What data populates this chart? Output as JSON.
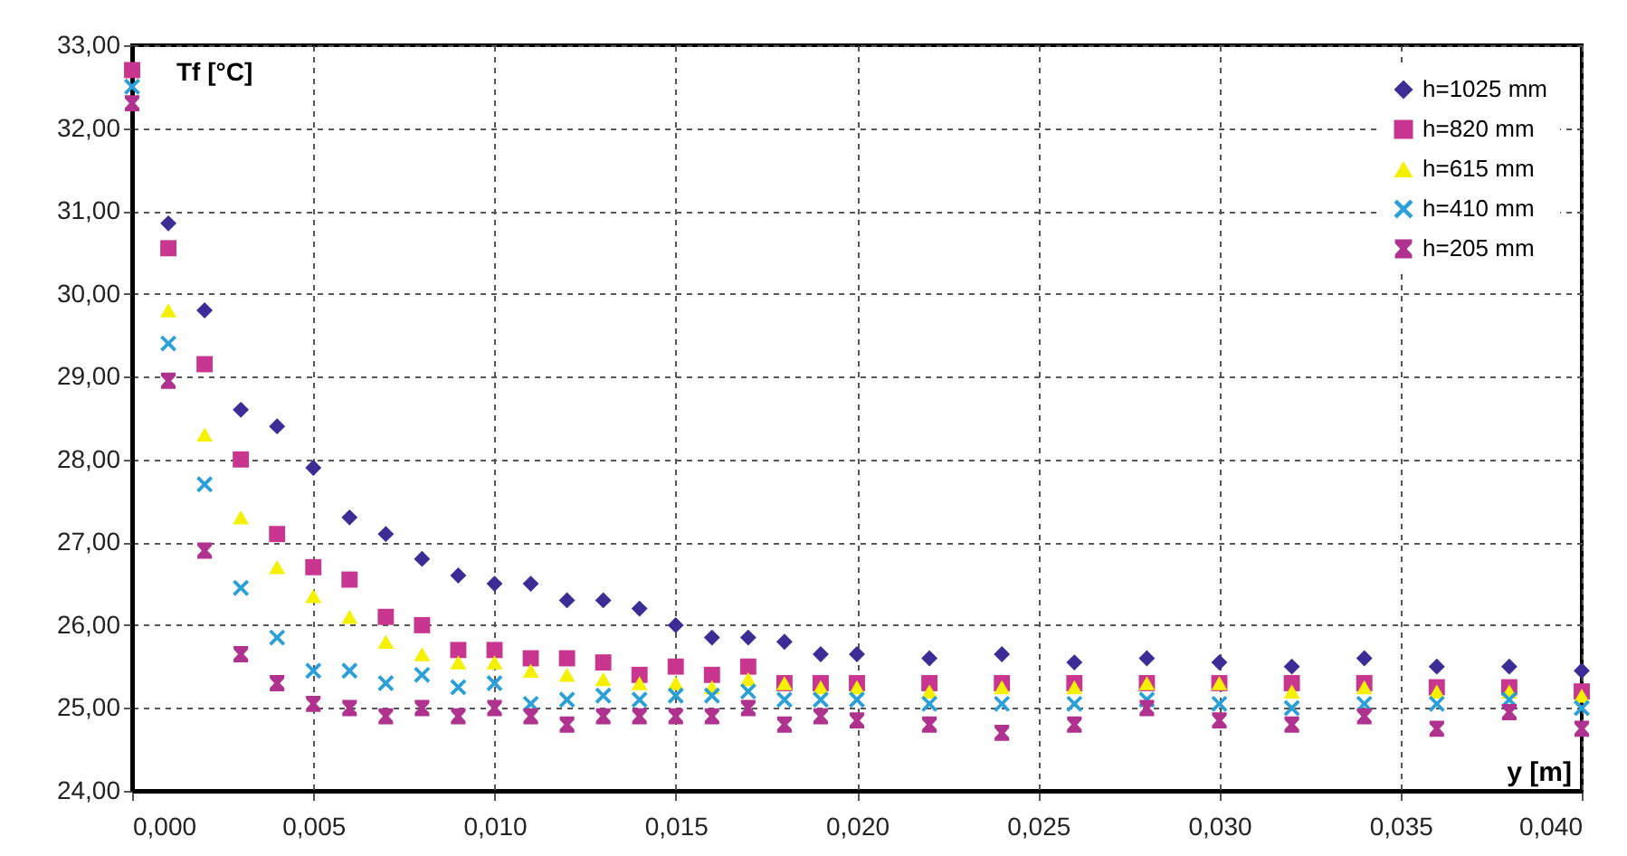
{
  "chart_data": {
    "type": "scatter",
    "ylabel": "Tf [°C]",
    "xlabel": "y [m]",
    "x": [
      0,
      0.001,
      0.002,
      0.003,
      0.004,
      0.005,
      0.006,
      0.007,
      0.008,
      0.009,
      0.01,
      0.011,
      0.012,
      0.013,
      0.014,
      0.015,
      0.016,
      0.017,
      0.018,
      0.019,
      0.02,
      0.022,
      0.024,
      0.026,
      0.028,
      0.03,
      0.032,
      0.034,
      0.036,
      0.038,
      0.04
    ],
    "series": [
      {
        "name": "h=1025 mm",
        "color": "#3b2d96",
        "marker": "diamond",
        "values": [
          null,
          30.85,
          29.8,
          28.6,
          28.4,
          27.9,
          27.3,
          27.1,
          26.8,
          26.6,
          26.5,
          26.5,
          26.3,
          26.3,
          26.2,
          26.0,
          25.85,
          25.85,
          25.8,
          25.65,
          25.65,
          25.6,
          25.65,
          25.55,
          25.6,
          25.55,
          25.5,
          25.6,
          25.5,
          25.5,
          25.45
        ]
      },
      {
        "name": "h=820 mm",
        "color": "#c8368f",
        "marker": "square",
        "values": [
          32.7,
          30.55,
          29.15,
          28.0,
          27.1,
          26.7,
          26.55,
          26.1,
          26.0,
          25.7,
          25.7,
          25.6,
          25.6,
          25.55,
          25.4,
          25.5,
          25.4,
          25.5,
          25.3,
          25.3,
          25.3,
          25.3,
          25.3,
          25.3,
          25.3,
          25.3,
          25.3,
          25.3,
          25.25,
          25.25,
          25.2
        ]
      },
      {
        "name": "h=615 mm",
        "color": "#f5f000",
        "marker": "triangle",
        "values": [
          null,
          29.8,
          28.3,
          27.3,
          26.7,
          26.35,
          26.1,
          25.8,
          25.65,
          25.55,
          25.55,
          25.45,
          25.4,
          25.35,
          25.3,
          25.3,
          25.25,
          25.35,
          25.3,
          25.25,
          25.25,
          25.2,
          25.25,
          25.25,
          25.3,
          25.3,
          25.2,
          25.25,
          25.2,
          25.2,
          25.15
        ]
      },
      {
        "name": "h=410 mm",
        "color": "#2ba0d8",
        "marker": "cross",
        "values": [
          32.5,
          29.4,
          27.7,
          26.45,
          25.85,
          25.45,
          25.45,
          25.3,
          25.4,
          25.25,
          25.3,
          25.05,
          25.1,
          25.15,
          25.1,
          25.15,
          25.15,
          25.2,
          25.1,
          25.1,
          25.1,
          25.05,
          25.05,
          25.05,
          25.1,
          25.05,
          25.0,
          25.05,
          25.05,
          25.1,
          25.0
        ]
      },
      {
        "name": "h=205 mm",
        "color": "#b0328f",
        "marker": "star",
        "values": [
          32.3,
          28.95,
          26.9,
          25.65,
          25.3,
          25.05,
          25.0,
          24.9,
          25.0,
          24.9,
          25.0,
          24.9,
          24.8,
          24.9,
          24.9,
          24.9,
          24.9,
          25.0,
          24.8,
          24.9,
          24.85,
          24.8,
          24.7,
          24.8,
          25.0,
          24.85,
          24.8,
          24.9,
          24.75,
          24.95,
          24.75
        ]
      }
    ],
    "xlim": [
      0,
      0.04
    ],
    "xticks": [
      {
        "value": 0,
        "label": "0,000"
      },
      {
        "value": 0.005,
        "label": "0,005"
      },
      {
        "value": 0.01,
        "label": "0,010"
      },
      {
        "value": 0.015,
        "label": "0,015"
      },
      {
        "value": 0.02,
        "label": "0,020"
      },
      {
        "value": 0.025,
        "label": "0,025"
      },
      {
        "value": 0.03,
        "label": "0,030"
      },
      {
        "value": 0.035,
        "label": "0,035"
      },
      {
        "value": 0.04,
        "label": "0,040"
      }
    ],
    "ylim": [
      24,
      33
    ],
    "yticks": [
      {
        "value": 24,
        "label": "24,00"
      },
      {
        "value": 25,
        "label": "25,00"
      },
      {
        "value": 26,
        "label": "26,00"
      },
      {
        "value": 27,
        "label": "27,00"
      },
      {
        "value": 28,
        "label": "28,00"
      },
      {
        "value": 29,
        "label": "29,00"
      },
      {
        "value": 30,
        "label": "30,00"
      },
      {
        "value": 31,
        "label": "31,00"
      },
      {
        "value": 32,
        "label": "32,00"
      },
      {
        "value": 33,
        "label": "33,00"
      }
    ],
    "grid": true,
    "legend": "top right"
  }
}
